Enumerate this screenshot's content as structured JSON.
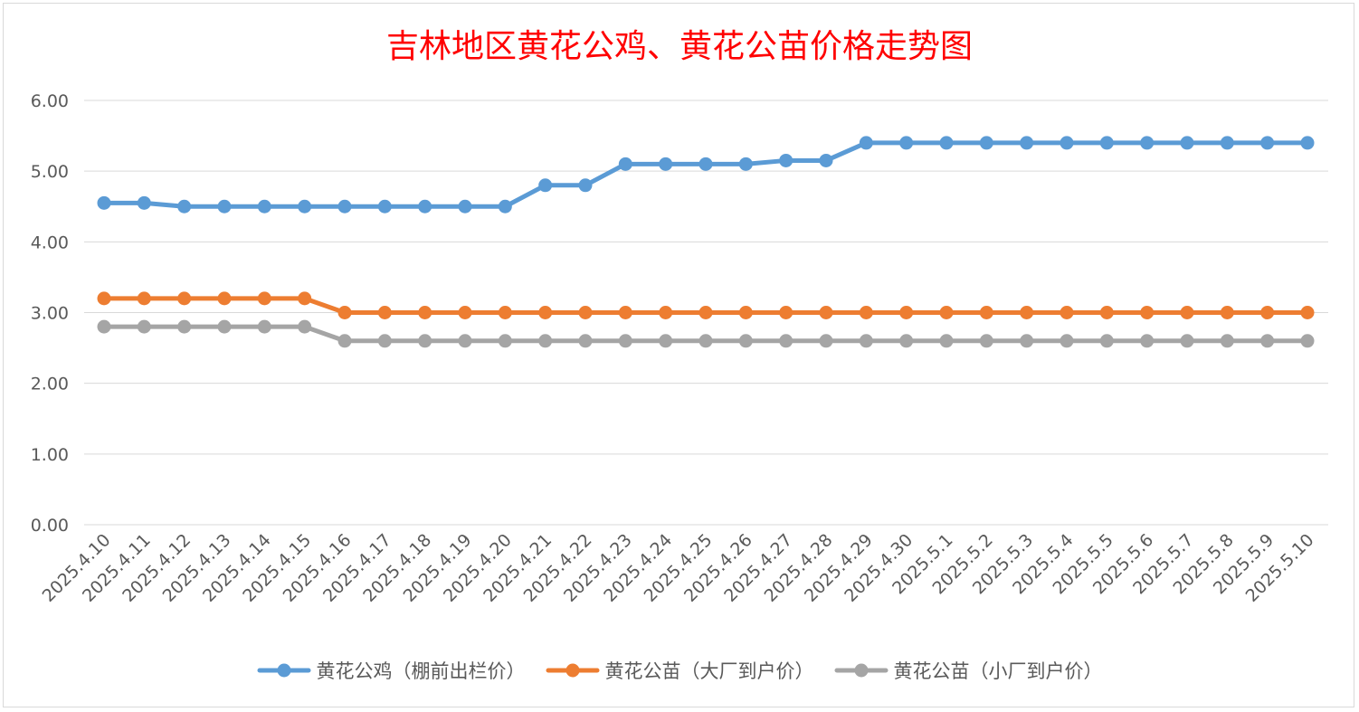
{
  "chart_data": {
    "type": "line",
    "title": "吉林地区黄花公鸡、黄花公苗价格走势图",
    "categories": [
      "2025.4.10",
      "2025.4.11",
      "2025.4.12",
      "2025.4.13",
      "2025.4.14",
      "2025.4.15",
      "2025.4.16",
      "2025.4.17",
      "2025.4.18",
      "2025.4.19",
      "2025.4.20",
      "2025.4.21",
      "2025.4.22",
      "2025.4.23",
      "2025.4.24",
      "2025.4.25",
      "2025.4.26",
      "2025.4.27",
      "2025.4.28",
      "2025.4.29",
      "2025.4.30",
      "2025.5.1",
      "2025.5.2",
      "2025.5.3",
      "2025.5.4",
      "2025.5.5",
      "2025.5.6",
      "2025.5.7",
      "2025.5.8",
      "2025.5.9",
      "2025.5.10"
    ],
    "series": [
      {
        "name": "黄花公鸡（棚前出栏价）",
        "color": "#5b9bd5",
        "values": [
          4.55,
          4.55,
          4.5,
          4.5,
          4.5,
          4.5,
          4.5,
          4.5,
          4.5,
          4.5,
          4.5,
          4.8,
          4.8,
          5.1,
          5.1,
          5.1,
          5.1,
          5.15,
          5.15,
          5.4,
          5.4,
          5.4,
          5.4,
          5.4,
          5.4,
          5.4,
          5.4,
          5.4,
          5.4,
          5.4,
          5.4
        ]
      },
      {
        "name": "黄花公苗（大厂到户价）",
        "color": "#ed7d31",
        "values": [
          3.2,
          3.2,
          3.2,
          3.2,
          3.2,
          3.2,
          3.0,
          3.0,
          3.0,
          3.0,
          3.0,
          3.0,
          3.0,
          3.0,
          3.0,
          3.0,
          3.0,
          3.0,
          3.0,
          3.0,
          3.0,
          3.0,
          3.0,
          3.0,
          3.0,
          3.0,
          3.0,
          3.0,
          3.0,
          3.0,
          3.0
        ]
      },
      {
        "name": "黄花公苗（小厂到户价）",
        "color": "#a5a5a5",
        "values": [
          2.8,
          2.8,
          2.8,
          2.8,
          2.8,
          2.8,
          2.6,
          2.6,
          2.6,
          2.6,
          2.6,
          2.6,
          2.6,
          2.6,
          2.6,
          2.6,
          2.6,
          2.6,
          2.6,
          2.6,
          2.6,
          2.6,
          2.6,
          2.6,
          2.6,
          2.6,
          2.6,
          2.6,
          2.6,
          2.6,
          2.6
        ]
      }
    ],
    "yticks": [
      "0.00",
      "1.00",
      "2.00",
      "3.00",
      "4.00",
      "5.00",
      "6.00"
    ],
    "ylim": [
      0,
      6
    ],
    "grid": true,
    "legend_position": "bottom",
    "xlabel": "",
    "ylabel": ""
  }
}
